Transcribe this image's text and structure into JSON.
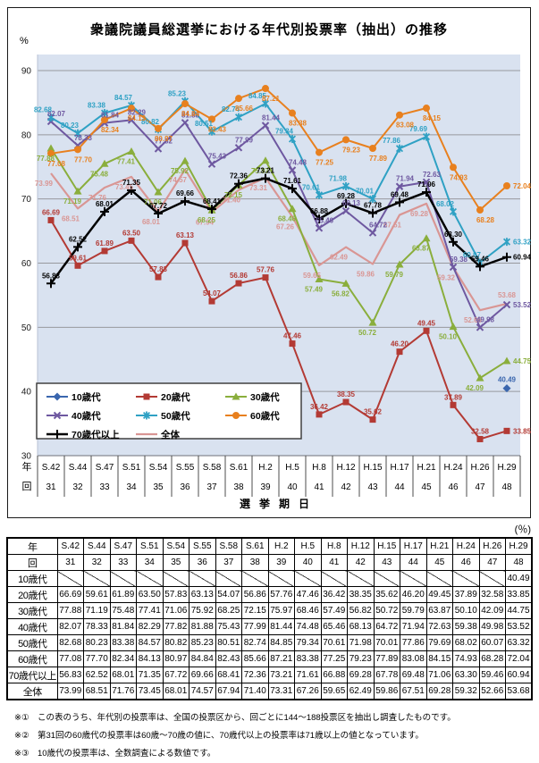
{
  "title": "衆議院議員総選挙における年代別投票率（抽出）の推移",
  "y_axis": {
    "unit": "%",
    "min": 30,
    "max": 90,
    "ticks": [
      90,
      80,
      70,
      60,
      50,
      40,
      30
    ]
  },
  "x_axis": {
    "year_label": "年",
    "round_label": "回",
    "years": [
      "S.42",
      "S.44",
      "S.47",
      "S.51",
      "S.54",
      "S.55",
      "S.58",
      "S.61",
      "H.2",
      "H.5",
      "H.8",
      "H.12",
      "H.15",
      "H.17",
      "H.21",
      "H.24",
      "H.26",
      "H.29"
    ],
    "rounds": [
      "31",
      "32",
      "33",
      "34",
      "35",
      "36",
      "37",
      "38",
      "39",
      "40",
      "41",
      "42",
      "43",
      "44",
      "45",
      "46",
      "47",
      "48"
    ],
    "caption": "選挙期日"
  },
  "chart_data": {
    "type": "line",
    "title": "衆議院議員総選挙における年代別投票率（抽出）の推移",
    "xlabel": "選挙期日",
    "ylabel": "%",
    "ylim": [
      30,
      90
    ],
    "grid": true,
    "plot_bg": "#D9E2F0",
    "grid_color": "#97999E",
    "axis_color": "#6f7278",
    "legend_position": "inside-bottom-left",
    "draw_order": [
      "overall",
      "age30s",
      "age40s",
      "age50s",
      "age60s",
      "age20s",
      "age70plus",
      "age10s"
    ],
    "categories": [
      "S.42",
      "S.44",
      "S.47",
      "S.51",
      "S.54",
      "S.55",
      "S.58",
      "S.61",
      "H.2",
      "H.5",
      "H.8",
      "H.12",
      "H.15",
      "H.17",
      "H.21",
      "H.24",
      "H.26",
      "H.29"
    ],
    "series": [
      {
        "key": "age10s",
        "name": "10歳代",
        "color": "#3A66AE",
        "marker": "diamond",
        "label_side": "above",
        "label_dx": 0,
        "last_label": "above",
        "values": [
          null,
          null,
          null,
          null,
          null,
          null,
          null,
          null,
          null,
          null,
          null,
          null,
          null,
          null,
          null,
          null,
          null,
          40.49
        ]
      },
      {
        "key": "age20s",
        "name": "20歳代",
        "color": "#B33A34",
        "marker": "square",
        "label_side": "above",
        "label_dx": 0,
        "last_label": "right",
        "values": [
          66.69,
          59.61,
          61.89,
          63.5,
          57.83,
          63.13,
          54.07,
          56.86,
          57.76,
          47.46,
          36.42,
          38.35,
          35.62,
          46.2,
          49.45,
          37.89,
          32.58,
          33.85
        ]
      },
      {
        "key": "age30s",
        "name": "30歳代",
        "color": "#8AAE3C",
        "marker": "triangle",
        "label_side": "below",
        "label_dx": -6,
        "last_label": "right",
        "values": [
          77.88,
          71.19,
          75.48,
          77.41,
          71.06,
          75.92,
          68.25,
          72.15,
          75.97,
          68.46,
          57.49,
          56.82,
          50.72,
          59.79,
          63.87,
          50.1,
          42.09,
          44.75
        ]
      },
      {
        "key": "age40s",
        "name": "40歳代",
        "color": "#6E58A0",
        "marker": "x",
        "label_side": "above",
        "label_dx": 6,
        "last_label": "right",
        "values": [
          82.07,
          78.33,
          81.84,
          82.29,
          77.82,
          81.88,
          75.43,
          77.99,
          81.44,
          74.48,
          65.46,
          68.13,
          64.72,
          71.94,
          72.63,
          59.38,
          49.98,
          53.52
        ]
      },
      {
        "key": "age50s",
        "name": "50歳代",
        "color": "#2FA1C4",
        "marker": "asterisk",
        "label_side": "above",
        "label_dx": -9,
        "last_label": "right",
        "values": [
          82.68,
          80.23,
          83.38,
          84.57,
          80.82,
          85.23,
          80.51,
          82.74,
          84.85,
          79.34,
          70.61,
          71.98,
          70.01,
          77.86,
          79.69,
          68.02,
          60.07,
          63.32
        ]
      },
      {
        "key": "age60s",
        "name": "60歳代",
        "color": "#E8801E",
        "marker": "circle",
        "label_side": "below",
        "label_dx": 6,
        "last_label": "right",
        "values": [
          77.08,
          77.7,
          82.34,
          84.13,
          80.97,
          84.84,
          82.43,
          85.66,
          87.21,
          83.38,
          77.25,
          79.23,
          77.89,
          83.08,
          84.15,
          74.93,
          68.28,
          72.04
        ]
      },
      {
        "key": "age70plus",
        "name": "70歳代以上",
        "color": "#000000",
        "marker": "plus",
        "label_side": "above",
        "label_dx": 0,
        "last_label": "right",
        "line_width": 2.5,
        "values": [
          56.83,
          62.52,
          68.01,
          71.35,
          67.72,
          69.66,
          68.41,
          72.36,
          73.21,
          71.61,
          66.88,
          69.28,
          67.78,
          69.48,
          71.06,
          63.3,
          59.46,
          60.94
        ]
      },
      {
        "key": "overall",
        "name": "全体",
        "color": "#D99694",
        "marker": "none",
        "label_side": "below",
        "label_dx": -8,
        "last_label": "above",
        "line_width": 2.2,
        "values": [
          73.99,
          68.51,
          71.76,
          73.45,
          68.01,
          74.57,
          67.94,
          71.4,
          73.31,
          67.26,
          59.65,
          62.49,
          59.86,
          67.51,
          69.28,
          59.32,
          52.66,
          53.68
        ]
      }
    ]
  },
  "table": {
    "percent_note": "(％)"
  },
  "footnotes": [
    "※①　この表のうち、年代別の投票率は、全国の投票区から、回ごとに144～188投票区を抽出し調査したものです。",
    "※②　第31回の60歳代の投票率は60歳～70歳の値に、70歳代以上の投票率は71歳以上の値となっています。",
    "※③　10歳代の投票率は、全数調査による数値です。"
  ]
}
